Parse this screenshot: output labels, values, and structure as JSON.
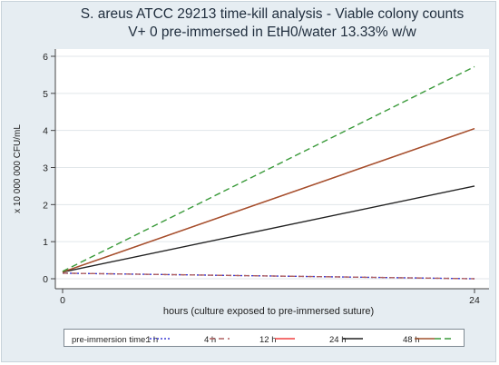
{
  "chart_data": {
    "type": "line",
    "title": "S. areus ATCC 29213 time-kill analysis - Viable colony counts",
    "subtitle": "V+ 0 pre-immersed in EtH0/water 13.33% w/w",
    "xlabel": "hours (culture exposed to pre-immersed suture)",
    "ylabel": "x 10 000 000 CFU/mL",
    "x": [
      0,
      24
    ],
    "xlim": [
      0,
      24
    ],
    "ylim": [
      0,
      6
    ],
    "xticks": [
      0,
      24
    ],
    "yticks": [
      0,
      1,
      2,
      3,
      4,
      5,
      6
    ],
    "grid": true,
    "legend_title": "pre-immersion time:",
    "legend_position": "bottom",
    "series": [
      {
        "name": "1 h",
        "values": [
          0.15,
          0.0
        ],
        "color": "#3b3bd6",
        "dash": "2,2"
      },
      {
        "name": "4 h",
        "values": [
          0.15,
          0.0
        ],
        "color": "#b06060",
        "dash": "6,4"
      },
      {
        "name": "12 h",
        "values": [
          0.18,
          4.05
        ],
        "color": "#f04040",
        "dash": ""
      },
      {
        "name": "24 h",
        "values": [
          0.18,
          2.5
        ],
        "color": "#222222",
        "dash": ""
      },
      {
        "name": "48 h",
        "values": [
          0.18,
          4.05
        ],
        "color": "#a0522d",
        "dash": ""
      },
      {
        "name": "",
        "values": [
          0.2,
          5.72
        ],
        "color": "#3a9a3a",
        "dash": "7,4"
      }
    ]
  }
}
